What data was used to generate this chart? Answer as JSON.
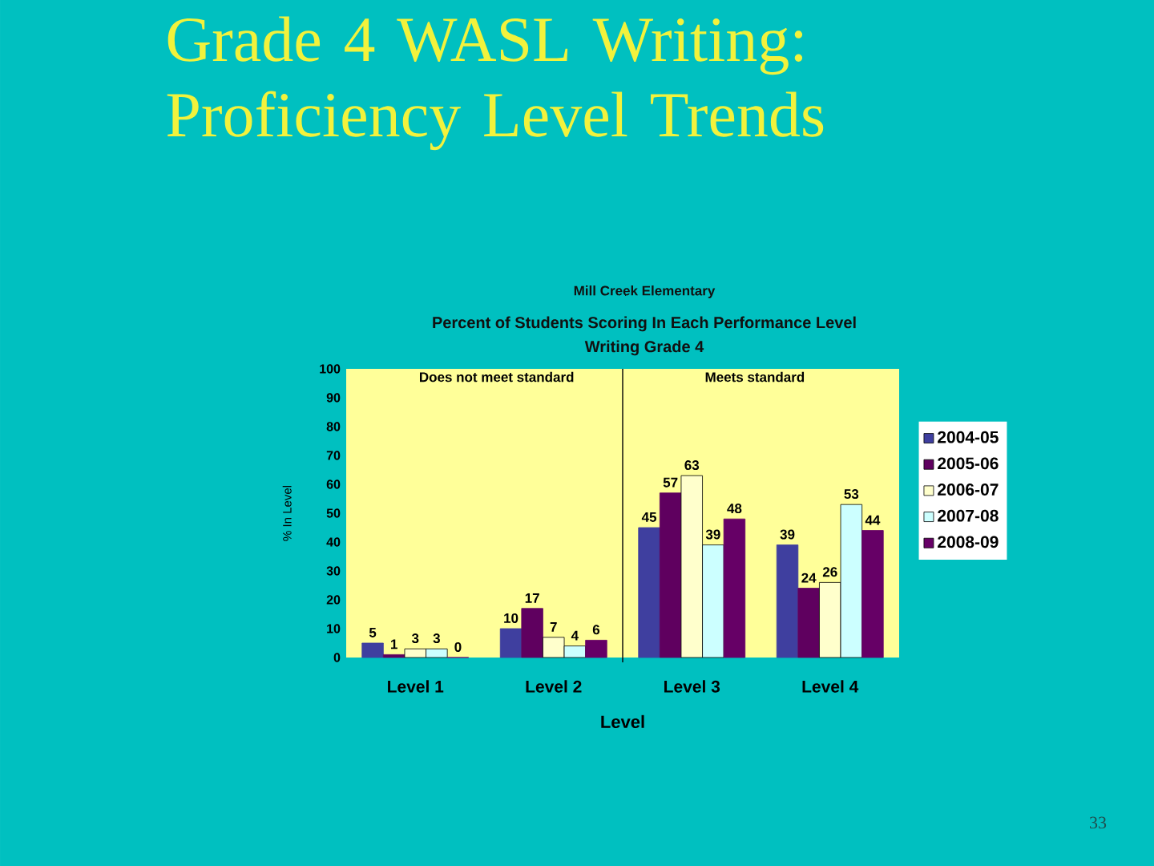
{
  "chart_data": {
    "type": "bar",
    "title": "Grade 4 WASL Writing: Proficiency Level Trends",
    "subtitle": "Percent of Students Scoring In Each Performance Level",
    "xlabel": "Level",
    "ylabel": "% In Level",
    "categories": [
      "Level 1",
      "Level 2",
      "Level 3",
      "Level 4"
    ],
    "series": [
      {
        "name": "2004-05",
        "color": "#3f3f9f",
        "values": [
          5,
          10,
          45,
          39
        ]
      },
      {
        "name": "2005-06",
        "color": "#5f005f",
        "values": [
          1,
          17,
          57,
          24
        ]
      },
      {
        "name": "2006-07",
        "color": "#ffffcc",
        "values": [
          3,
          7,
          63,
          26
        ]
      },
      {
        "name": "2007-08",
        "color": "#ccffff",
        "values": [
          3,
          4,
          39,
          53
        ]
      },
      {
        "name": "2008-09",
        "color": "#660066",
        "values": [
          0,
          6,
          48,
          44
        ]
      }
    ],
    "ylim": [
      0,
      100
    ],
    "yticks": [
      0,
      10,
      20,
      30,
      40,
      50,
      60,
      70,
      80,
      90,
      100
    ],
    "data_labels": true,
    "legend": "right",
    "annotations": [
      "Mill Creek Elementary",
      "Writing Grade 4",
      "Does not meet standard",
      "Meets standard",
      "33"
    ]
  }
}
